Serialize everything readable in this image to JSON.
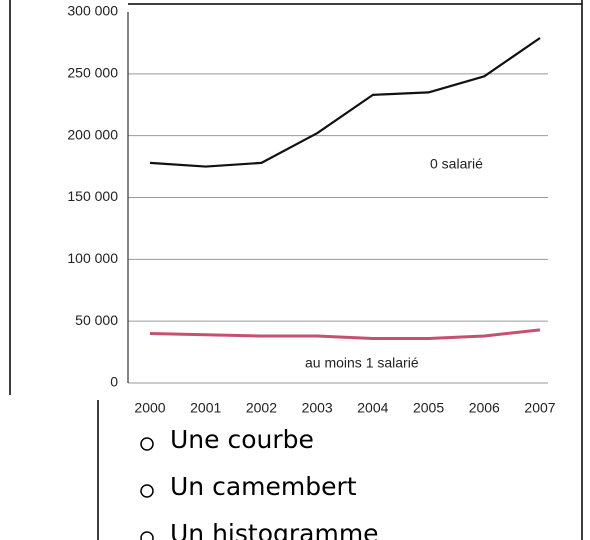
{
  "chart_data": {
    "type": "line",
    "x": [
      2000,
      2001,
      2002,
      2003,
      2004,
      2005,
      2006,
      2007
    ],
    "series": [
      {
        "name": "0 salarié",
        "color": "#111111",
        "values": [
          178000,
          175000,
          178000,
          202000,
          233000,
          235000,
          248000,
          279000
        ]
      },
      {
        "name": "au moins 1 salarié",
        "color": "#c4526f",
        "values": [
          40000,
          39000,
          38000,
          38000,
          36000,
          36000,
          38000,
          43000
        ]
      }
    ],
    "xlim": [
      2000,
      2007
    ],
    "xticks": [
      2000,
      2001,
      2002,
      2003,
      2004,
      2005,
      2006,
      2007
    ],
    "ylim": [
      0,
      300000
    ],
    "yticks": [
      0,
      {
        "value": 50000,
        "label": "50 000"
      },
      {
        "value": 100000,
        "label": "100 000"
      },
      {
        "value": 150000,
        "label": "150 000"
      },
      {
        "value": 200000,
        "label": "200 000"
      },
      {
        "value": 250000,
        "label": "250 000"
      },
      {
        "value": 300000,
        "label": "300 000"
      }
    ],
    "grid": true
  },
  "options": [
    "Une courbe",
    "Un camembert",
    "Un histogramme"
  ]
}
